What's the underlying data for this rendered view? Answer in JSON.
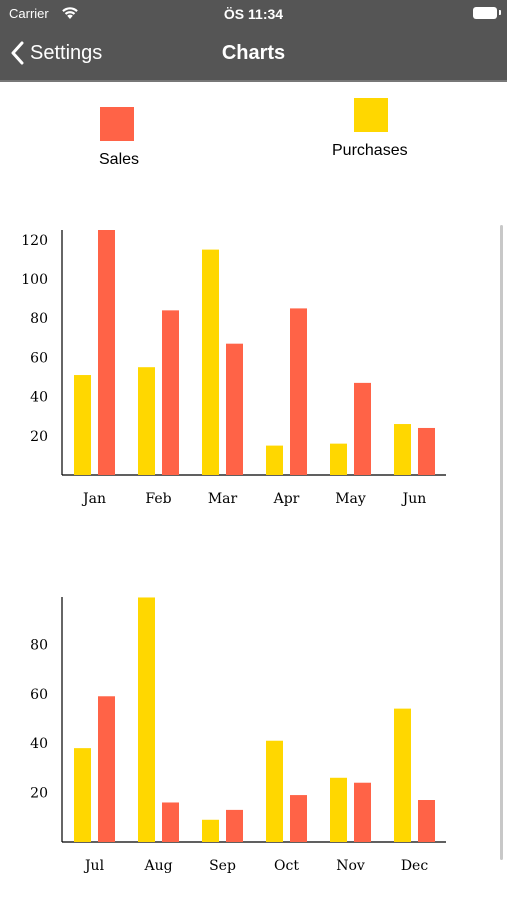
{
  "status_bar": {
    "carrier": "Carrier",
    "time": "ÖS 11:34"
  },
  "nav": {
    "back_label": "Settings",
    "title": "Charts"
  },
  "colors": {
    "sales": "#FF6347",
    "purchases": "#FFD700",
    "bar_header": "#555555"
  },
  "legend": [
    {
      "label": "Sales",
      "color": "#FF6347"
    },
    {
      "label": "Purchases",
      "color": "#FFD700"
    }
  ],
  "chart_data": [
    {
      "type": "bar",
      "categories": [
        "Jan",
        "Feb",
        "Mar",
        "Apr",
        "May",
        "Jun"
      ],
      "series": [
        {
          "name": "Purchases",
          "color": "#FFD700",
          "values": [
            51,
            55,
            115,
            15,
            16,
            26
          ]
        },
        {
          "name": "Sales",
          "color": "#FF6347",
          "values": [
            125,
            84,
            67,
            85,
            47,
            24
          ]
        }
      ],
      "yticks": [
        20,
        40,
        60,
        80,
        100,
        120
      ],
      "ylim": [
        0,
        125
      ]
    },
    {
      "type": "bar",
      "categories": [
        "Jul",
        "Aug",
        "Sep",
        "Oct",
        "Nov",
        "Dec"
      ],
      "series": [
        {
          "name": "Purchases",
          "color": "#FFD700",
          "values": [
            38,
            99,
            9,
            41,
            26,
            54
          ]
        },
        {
          "name": "Sales",
          "color": "#FF6347",
          "values": [
            59,
            16,
            13,
            19,
            24,
            17
          ]
        }
      ],
      "yticks": [
        20,
        40,
        60,
        80
      ],
      "ylim": [
        0,
        99
      ]
    }
  ]
}
